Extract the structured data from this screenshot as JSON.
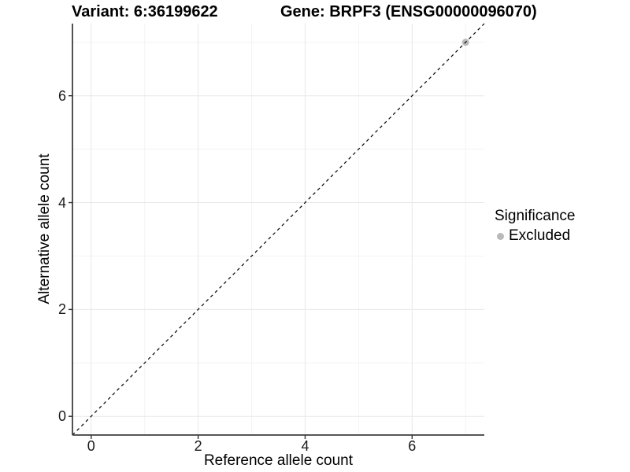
{
  "legend": {
    "title": "Significance",
    "items": [
      {
        "label": "Excluded",
        "color": "#b9b9b9"
      }
    ]
  },
  "chart_data": {
    "type": "scatter",
    "title_left": "Variant: 6:36199622",
    "title_right": "Gene: BRPF3 (ENSG00000096070)",
    "xlabel": "Reference allele count",
    "ylabel": "Alternative allele count",
    "xlim": [
      -0.35,
      7.35
    ],
    "ylim": [
      -0.35,
      7.35
    ],
    "x_ticks": [
      0,
      2,
      4,
      6
    ],
    "y_ticks": [
      0,
      2,
      4,
      6
    ],
    "x_minor_ticks": [
      1,
      3,
      5,
      7
    ],
    "y_minor_ticks": [
      1,
      3,
      5,
      7
    ],
    "grid": "major+minor",
    "legend_position": "right",
    "series": [
      {
        "name": "Excluded",
        "color": "#b9b9b9",
        "marker": "circle",
        "points": [
          [
            7,
            7
          ]
        ]
      }
    ],
    "reference_line": {
      "kind": "identity",
      "slope": 1,
      "intercept": 0,
      "style": "dashed",
      "color": "#000000"
    },
    "colors": {
      "grid_major": "#e8e8e8",
      "grid_minor": "#f3f3f3",
      "axis_line": "#3f3f3f",
      "tick_mark": "#333333"
    }
  }
}
